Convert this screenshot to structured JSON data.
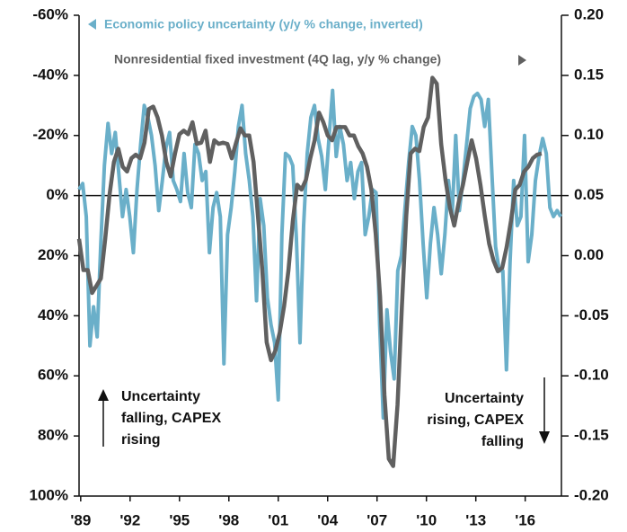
{
  "chart_data": {
    "type": "line",
    "series": [
      {
        "name": "Economic policy uncertainty (y/y % change, inverted)",
        "color": "#6aafc9",
        "axis": "y",
        "x": [
          1988.9,
          1989.12,
          1989.34,
          1989.56,
          1989.78,
          1990,
          1990.22,
          1990.44,
          1990.66,
          1990.88,
          1991.1,
          1991.32,
          1991.54,
          1991.76,
          1991.98,
          1992.2,
          1992.42,
          1992.64,
          1992.86,
          1993.08,
          1993.3,
          1993.52,
          1993.74,
          1993.96,
          1994.18,
          1994.4,
          1994.62,
          1994.84,
          1995.06,
          1995.28,
          1995.5,
          1995.72,
          1995.94,
          1996.16,
          1996.38,
          1996.6,
          1996.82,
          1997.04,
          1997.26,
          1997.48,
          1997.7,
          1997.92,
          1998.14,
          1998.36,
          1998.58,
          1998.8,
          1999.02,
          1999.24,
          1999.46,
          1999.68,
          1999.9,
          2000.12,
          2000.34,
          2000.56,
          2000.78,
          2001,
          2001.22,
          2001.44,
          2001.66,
          2001.88,
          2002.1,
          2002.32,
          2002.54,
          2002.76,
          2002.98,
          2003.2,
          2003.42,
          2003.64,
          2003.86,
          2004.08,
          2004.3,
          2004.52,
          2004.74,
          2004.96,
          2005.18,
          2005.4,
          2005.62,
          2005.84,
          2006.06,
          2006.28,
          2006.5,
          2006.72,
          2006.94,
          2007.16,
          2007.38,
          2007.6,
          2007.82,
          2008.04,
          2008.26,
          2008.48,
          2008.7,
          2008.92,
          2009.14,
          2009.36,
          2009.58,
          2009.8,
          2010.02,
          2010.24,
          2010.46,
          2010.68,
          2010.9,
          2011.12,
          2011.34,
          2011.56,
          2011.78,
          2012,
          2012.22,
          2012.44,
          2012.66,
          2012.88,
          2013.1,
          2013.32,
          2013.54,
          2013.76,
          2013.98,
          2014.2,
          2014.42,
          2014.64,
          2014.86,
          2015.08,
          2015.3,
          2015.52,
          2015.74,
          2015.96,
          2016.18,
          2016.4,
          2016.62,
          2016.84,
          2017.06,
          2017.28,
          2017.5,
          2017.72,
          2017.94,
          2018.16
        ],
        "values": [
          -2,
          -4,
          7,
          50,
          37,
          47,
          16,
          -10,
          -24,
          -14,
          -21,
          -7,
          7,
          -2,
          7,
          19,
          -2,
          -17,
          -30,
          -26,
          -20,
          -10,
          5,
          -5,
          -16,
          -21,
          -5,
          -2,
          2,
          -14,
          -1,
          4,
          -17,
          -14,
          -5,
          -8,
          19,
          4,
          -1,
          7,
          56,
          13,
          4,
          -8,
          -23,
          -30,
          -14,
          -5,
          7,
          35,
          1,
          10,
          34,
          43,
          49,
          68,
          13,
          -14,
          -13,
          -10,
          14,
          49,
          10,
          -14,
          -26,
          -30,
          -19,
          -13,
          -2,
          -19,
          -35,
          -13,
          -23,
          -17,
          -5,
          -11,
          1,
          -8,
          -11,
          13,
          7,
          -2,
          -1,
          43,
          74,
          38,
          52,
          61,
          25,
          20,
          4,
          -11,
          -23,
          -20,
          -5,
          16,
          34,
          16,
          4,
          13,
          26,
          13,
          -5,
          7,
          -20,
          5,
          -5,
          -17,
          -29,
          -33,
          -34,
          -32,
          -23,
          -32,
          -7,
          17,
          25,
          25,
          58,
          22,
          -5,
          10,
          7,
          -20,
          22,
          13,
          -5,
          -13,
          -19,
          -14,
          4,
          7,
          5,
          7
        ]
      },
      {
        "name": "Nonresidential fixed investment (4Q lag, y/y % change)",
        "color": "#606060",
        "axis": "y2",
        "x": [
          1988.9,
          1989.165,
          1989.43,
          1989.695,
          1989.96,
          1990.225,
          1990.49,
          1990.755,
          1991.02,
          1991.285,
          1991.55,
          1991.815,
          1992.08,
          1992.345,
          1992.61,
          1992.875,
          1993.14,
          1993.405,
          1993.67,
          1993.935,
          1994.2,
          1994.465,
          1994.73,
          1994.995,
          1995.26,
          1995.525,
          1995.79,
          1996.055,
          1996.32,
          1996.585,
          1996.85,
          1997.115,
          1997.38,
          1997.645,
          1997.91,
          1998.175,
          1998.44,
          1998.705,
          1998.97,
          1999.235,
          1999.5,
          1999.765,
          2000.03,
          2000.295,
          2000.56,
          2000.825,
          2001.09,
          2001.355,
          2001.62,
          2001.885,
          2002.15,
          2002.415,
          2002.68,
          2002.945,
          2003.21,
          2003.475,
          2003.74,
          2004.005,
          2004.27,
          2004.535,
          2004.8,
          2005.065,
          2005.33,
          2005.595,
          2005.86,
          2006.125,
          2006.39,
          2006.655,
          2006.92,
          2007.185,
          2007.45,
          2007.715,
          2007.98,
          2008.245,
          2008.51,
          2008.775,
          2009.04,
          2009.305,
          2009.57,
          2009.835,
          2010.1,
          2010.365,
          2010.63,
          2010.895,
          2011.16,
          2011.425,
          2011.69,
          2011.955,
          2012.22,
          2012.485,
          2012.75,
          2013.015,
          2013.28,
          2013.545,
          2013.81,
          2014.075,
          2014.34,
          2014.605,
          2014.87,
          2015.135,
          2015.4,
          2015.665,
          2015.93,
          2016.195,
          2016.46,
          2016.725,
          2016.99
        ],
        "values": [
          0.014,
          -0.012,
          -0.012,
          -0.031,
          -0.025,
          -0.019,
          0.014,
          0.051,
          0.078,
          0.089,
          0.074,
          0.07,
          0.081,
          0.084,
          0.081,
          0.094,
          0.122,
          0.124,
          0.115,
          0.1,
          0.078,
          0.066,
          0.085,
          0.101,
          0.104,
          0.101,
          0.111,
          0.093,
          0.094,
          0.104,
          0.078,
          0.096,
          0.093,
          0.094,
          0.093,
          0.081,
          0.094,
          0.106,
          0.1,
          0.1,
          0.078,
          0.033,
          -0.012,
          -0.072,
          -0.087,
          -0.079,
          -0.064,
          -0.042,
          -0.012,
          0.029,
          0.059,
          0.055,
          0.063,
          0.081,
          0.096,
          0.119,
          0.111,
          0.1,
          0.096,
          0.107,
          0.107,
          0.107,
          0.1,
          0.1,
          0.091,
          0.085,
          0.074,
          0.055,
          0.018,
          -0.034,
          -0.116,
          -0.169,
          -0.175,
          -0.124,
          -0.042,
          0.033,
          0.085,
          0.089,
          0.087,
          0.107,
          0.115,
          0.148,
          0.143,
          0.093,
          0.063,
          0.04,
          0.025,
          0.044,
          0.059,
          0.078,
          0.096,
          0.081,
          0.059,
          0.033,
          0.01,
          -0.004,
          -0.013,
          -0.01,
          0.007,
          0.029,
          0.055,
          0.059,
          0.07,
          0.074,
          0.081,
          0.084,
          0.085
        ]
      }
    ],
    "xlim": [
      1988.9,
      2018.2
    ],
    "xticks": [
      {
        "value": 1989,
        "label": "'89"
      },
      {
        "value": 1992,
        "label": "'92"
      },
      {
        "value": 1995,
        "label": "'95"
      },
      {
        "value": 1998,
        "label": "'98"
      },
      {
        "value": 2001,
        "label": "'01"
      },
      {
        "value": 2004,
        "label": "'04"
      },
      {
        "value": 2007,
        "label": "'07"
      },
      {
        "value": 2010,
        "label": "'10"
      },
      {
        "value": 2013,
        "label": "'13"
      },
      {
        "value": 2016,
        "label": "'16"
      }
    ],
    "ylim": [
      100,
      -60
    ],
    "yticks": [
      {
        "value": -60,
        "label": "-60%"
      },
      {
        "value": -40,
        "label": "-40%"
      },
      {
        "value": -20,
        "label": "-20%"
      },
      {
        "value": 0,
        "label": "0%"
      },
      {
        "value": 20,
        "label": "20%"
      },
      {
        "value": 40,
        "label": "40%"
      },
      {
        "value": 60,
        "label": "60%"
      },
      {
        "value": 80,
        "label": "80%"
      },
      {
        "value": 100,
        "label": "100%"
      }
    ],
    "y2lim": [
      -0.2,
      0.2
    ],
    "y2ticks": [
      {
        "value": 0.2,
        "label": "0.20"
      },
      {
        "value": 0.15,
        "label": "0.15"
      },
      {
        "value": 0.1,
        "label": "0.10"
      },
      {
        "value": 0.05,
        "label": "0.05"
      },
      {
        "value": 0,
        "label": "0.00"
      },
      {
        "value": -0.05,
        "label": "-0.05"
      },
      {
        "value": -0.1,
        "label": "-0.10"
      },
      {
        "value": -0.15,
        "label": "-0.15"
      },
      {
        "value": -0.2,
        "label": "-0.20"
      }
    ],
    "annotations": [
      {
        "lines": [
          "Uncertainty",
          "falling, CAPEX",
          "rising"
        ]
      },
      {
        "lines": [
          "Uncertainty",
          "rising, CAPEX",
          "falling"
        ]
      }
    ]
  }
}
